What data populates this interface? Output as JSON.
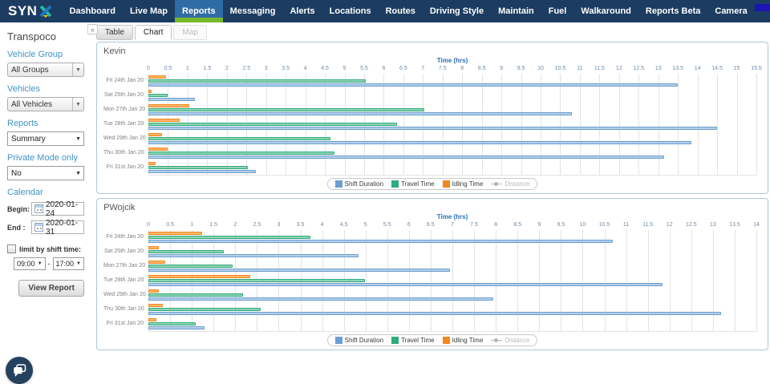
{
  "nav": {
    "logo_text": "SYN",
    "bar_color": "#1c3c61",
    "active_bg_color": "#2f6ca5",
    "active_underline_color": "#76b82a",
    "items": [
      {
        "label": "Dashboard",
        "active": false
      },
      {
        "label": "Live Map",
        "active": false
      },
      {
        "label": "Reports",
        "active": true
      },
      {
        "label": "Messaging",
        "active": false
      },
      {
        "label": "Alerts",
        "active": false
      },
      {
        "label": "Locations",
        "active": false
      },
      {
        "label": "Routes",
        "active": false
      },
      {
        "label": "Driving Style",
        "active": false
      },
      {
        "label": "Maintain",
        "active": false
      },
      {
        "label": "Fuel",
        "active": false
      },
      {
        "label": "Walkaround",
        "active": false
      },
      {
        "label": "Reports Beta",
        "active": false
      },
      {
        "label": "Camera",
        "active": false
      }
    ]
  },
  "sidebar": {
    "title": "Transpoco",
    "collapse_icon": "«",
    "vehicle_group_label": "Vehicle Group",
    "vehicle_group_value": "All Groups",
    "vehicles_label": "Vehicles",
    "vehicles_value": "All Vehicles",
    "reports_label": "Reports",
    "reports_value": "Summary",
    "private_mode_label": "Private Mode only",
    "private_mode_value": "No",
    "calendar_label": "Calendar",
    "begin_label": "Begin:",
    "begin_value": "2020-01-24",
    "end_label": "End :",
    "end_value": "2020-01-31",
    "shift_limit_label": "limit by shift time:",
    "shift_limit_checked": false,
    "shift_start_value": "09:00",
    "shift_end_value": "17:00",
    "view_report_label": "View Report"
  },
  "tabs": [
    {
      "label": "Table",
      "state": "normal"
    },
    {
      "label": "Chart",
      "state": "active"
    },
    {
      "label": "Map",
      "state": "disabled"
    }
  ],
  "chart_data": [
    {
      "type": "bar",
      "orientation": "horizontal",
      "title": "Kevin",
      "xlabel": "Time (hrs)",
      "xlim": [
        0,
        15.5
      ],
      "tick_step": 0.5,
      "grid": true,
      "legend_position": "bottom",
      "categories": [
        "Fri 24th Jan 20",
        "Sat 25th Jan 20",
        "Mon 27th Jan 20",
        "Tue 28th Jan 20",
        "Wed 29th Jan 20",
        "Thu 30th Jan 20",
        "Fri 31st Jan 20"
      ],
      "series": [
        {
          "name": "Shift Duration",
          "color": "#6d9ecf",
          "fill": "#b4cfe9",
          "values": [
            13.45,
            1.15,
            10.75,
            14.45,
            13.8,
            13.1,
            2.7
          ]
        },
        {
          "name": "Travel Time",
          "color": "#2eab7c",
          "fill": "#8fd3b3",
          "values": [
            5.5,
            0.45,
            7.0,
            6.3,
            4.6,
            4.7,
            2.5
          ]
        },
        {
          "name": "Idling Time",
          "color": "#f3871e",
          "fill": "#f9b469",
          "values": [
            0.4,
            0.05,
            1.0,
            0.75,
            0.3,
            0.45,
            0.15
          ]
        },
        {
          "name": "Distance",
          "color": "#b5b5b5",
          "fill": "#b5b5b5",
          "disabled": true,
          "values": []
        }
      ]
    },
    {
      "type": "bar",
      "orientation": "horizontal",
      "title": "PWojcik",
      "xlabel": "Time (hrs)",
      "xlim": [
        0,
        14
      ],
      "tick_step": 0.5,
      "grid": true,
      "legend_position": "bottom",
      "categories": [
        "Fri 24th Jan 20",
        "Sat 25th Jan 20",
        "Mon 27th Jan 20",
        "Tue 28th Jan 20",
        "Wed 29th Jan 20",
        "Thu 30th Jan 20",
        "Fri 31st Jan 20"
      ],
      "series": [
        {
          "name": "Shift Duration",
          "color": "#6d9ecf",
          "fill": "#b4cfe9",
          "values": [
            10.65,
            4.8,
            6.9,
            11.8,
            7.9,
            13.15,
            1.25
          ]
        },
        {
          "name": "Travel Time",
          "color": "#2eab7c",
          "fill": "#8fd3b3",
          "values": [
            3.7,
            1.7,
            1.9,
            4.95,
            2.15,
            2.55,
            1.05
          ]
        },
        {
          "name": "Idling Time",
          "color": "#f3871e",
          "fill": "#f9b469",
          "values": [
            1.2,
            0.2,
            0.35,
            2.3,
            0.2,
            0.3,
            0.15
          ]
        },
        {
          "name": "Distance",
          "color": "#b5b5b5",
          "fill": "#b5b5b5",
          "disabled": true,
          "values": []
        }
      ]
    }
  ]
}
